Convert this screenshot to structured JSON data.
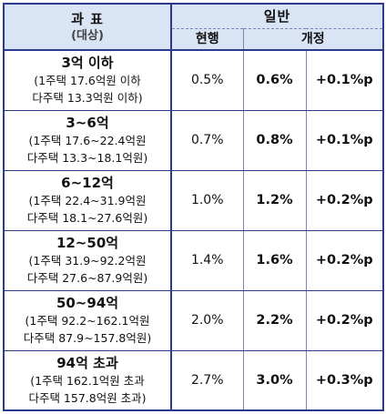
{
  "header": {
    "category_title": "과  표",
    "category_sub": "(대상)",
    "group": "일반",
    "current": "현행",
    "revised": "개정"
  },
  "rows": [
    {
      "title": "3억 이하",
      "line1": "(1주택 17.6억원 이하",
      "line2": "다주택 13.3억원 이하)",
      "current": "0.5%",
      "revised": "0.6%",
      "diff": "+0.1%p"
    },
    {
      "title": "3~6억",
      "line1": "(1주택 17.6~22.4억원",
      "line2": "다주택 13.3~18.1억원)",
      "current": "0.7%",
      "revised": "0.8%",
      "diff": "+0.1%p"
    },
    {
      "title": "6~12억",
      "line1": "(1주택 22.4~31.9억원",
      "line2": "다주택 18.1~27.6억원)",
      "current": "1.0%",
      "revised": "1.2%",
      "diff": "+0.2%p"
    },
    {
      "title": "12~50억",
      "line1": "(1주택 31.9~92.2억원",
      "line2": "다주택 27.6~87.9억원)",
      "current": "1.4%",
      "revised": "1.6%",
      "diff": "+0.2%p"
    },
    {
      "title": "50~94억",
      "line1": "(1주택 92.2~162.1억원",
      "line2": "다주택 87.9~157.8억원)",
      "current": "2.0%",
      "revised": "2.2%",
      "diff": "+0.2%p"
    },
    {
      "title": "94억 초과",
      "line1": "(1주택 162.1억원 초과",
      "line2": "다주택 157.8억원 초과)",
      "current": "2.7%",
      "revised": "3.0%",
      "diff": "+0.3%p"
    }
  ]
}
